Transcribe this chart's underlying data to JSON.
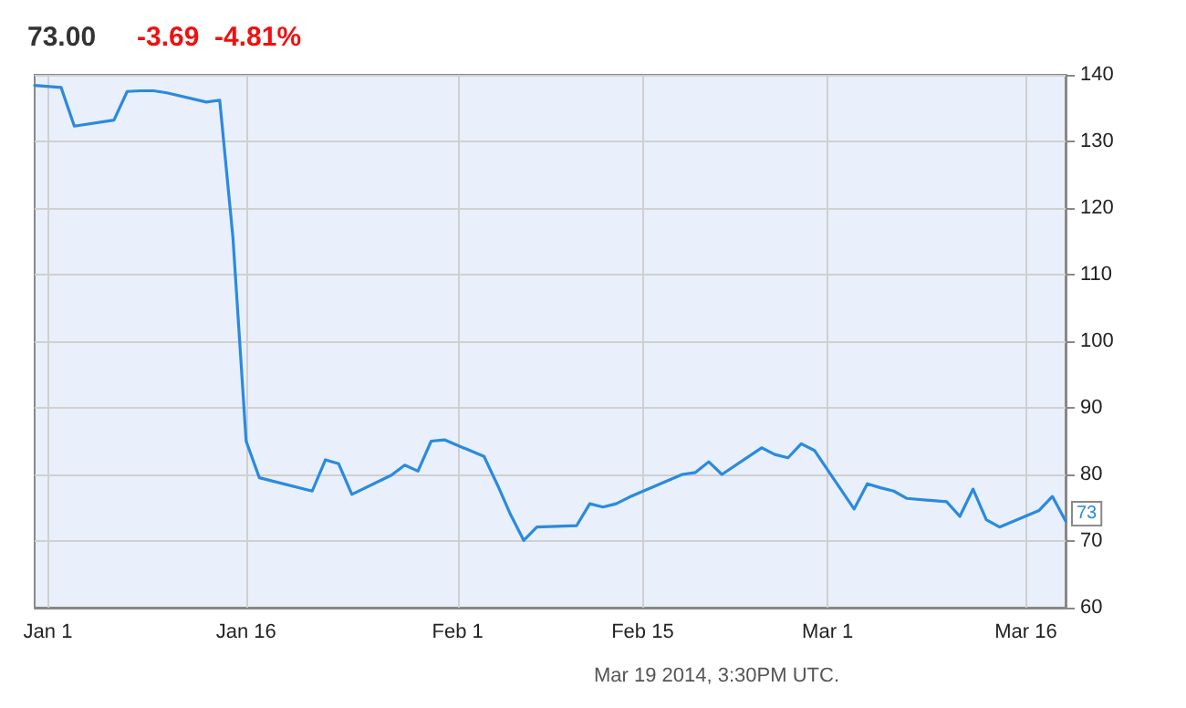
{
  "chart_data": {
    "type": "line",
    "title": "73.00",
    "subtitle": "-3.69  -4.81%",
    "annotations": [
      "Mar 19 2014, 3:30PM UTC."
    ],
    "x": [
      "2013-12-31",
      "2014-01-02",
      "2014-01-03",
      "2014-01-06",
      "2014-01-07",
      "2014-01-08",
      "2014-01-09",
      "2014-01-10",
      "2014-01-13",
      "2014-01-14",
      "2014-01-15",
      "2014-01-16",
      "2014-01-17",
      "2014-01-21",
      "2014-01-22",
      "2014-01-23",
      "2014-01-24",
      "2014-01-27",
      "2014-01-28",
      "2014-01-29",
      "2014-01-30",
      "2014-01-31",
      "2014-02-03",
      "2014-02-04",
      "2014-02-05",
      "2014-02-06",
      "2014-02-07",
      "2014-02-10",
      "2014-02-11",
      "2014-02-12",
      "2014-02-13",
      "2014-02-14",
      "2014-02-18",
      "2014-02-19",
      "2014-02-20",
      "2014-02-21",
      "2014-02-24",
      "2014-02-25",
      "2014-02-26",
      "2014-02-27",
      "2014-02-28",
      "2014-03-03",
      "2014-03-04",
      "2014-03-05",
      "2014-03-06",
      "2014-03-07",
      "2014-03-10",
      "2014-03-11",
      "2014-03-12",
      "2014-03-13",
      "2014-03-14",
      "2014-03-17",
      "2014-03-18",
      "2014-03-19"
    ],
    "series": [
      {
        "color": "#2a8ae0",
        "values": [
          138.4,
          138.1,
          132.3,
          133.2,
          137.5,
          137.6,
          137.6,
          137.3,
          135.9,
          136.2,
          115.6,
          85.0,
          79.5,
          77.5,
          82.2,
          81.6,
          77.0,
          79.9,
          81.4,
          80.5,
          85.0,
          85.2,
          82.7,
          78.5,
          74.0,
          70.1,
          72.1,
          72.3,
          75.6,
          75.1,
          75.6,
          76.6,
          80.0,
          80.3,
          81.9,
          80.0,
          84.0,
          83.0,
          82.5,
          84.6,
          83.6,
          74.8,
          78.6,
          78.0,
          77.5,
          76.4,
          75.9,
          73.7,
          77.8,
          73.2,
          72.1,
          74.6,
          76.7,
          73
        ],
        "value_labels": [
          null,
          null,
          null,
          null,
          null,
          null,
          null,
          null,
          null,
          null,
          null,
          null,
          null,
          null,
          null,
          null,
          null,
          null,
          null,
          null,
          null,
          null,
          null,
          null,
          null,
          null,
          null,
          null,
          null,
          null,
          null,
          null,
          null,
          null,
          null,
          null,
          null,
          null,
          null,
          null,
          null,
          null,
          null,
          null,
          null,
          null,
          null,
          null,
          null,
          null,
          null,
          null,
          null,
          "73"
        ]
      }
    ],
    "xlim": [
      "2013-12-31",
      "2014-03-19"
    ],
    "xticks": [
      {
        "value": "2014-01-01",
        "label": "Jan 1"
      },
      {
        "value": "2014-01-16",
        "label": "Jan 16"
      },
      {
        "value": "2014-02-01",
        "label": "Feb 1"
      },
      {
        "value": "2014-02-15",
        "label": "Feb 15"
      },
      {
        "value": "2014-03-01",
        "label": "Mar 1"
      },
      {
        "value": "2014-03-16",
        "label": "Mar 16"
      }
    ],
    "ylim": [
      60,
      140
    ],
    "yticks": [
      60,
      70,
      80,
      90,
      100,
      110,
      120,
      130,
      140
    ],
    "grid": true,
    "line_style": "solid"
  }
}
